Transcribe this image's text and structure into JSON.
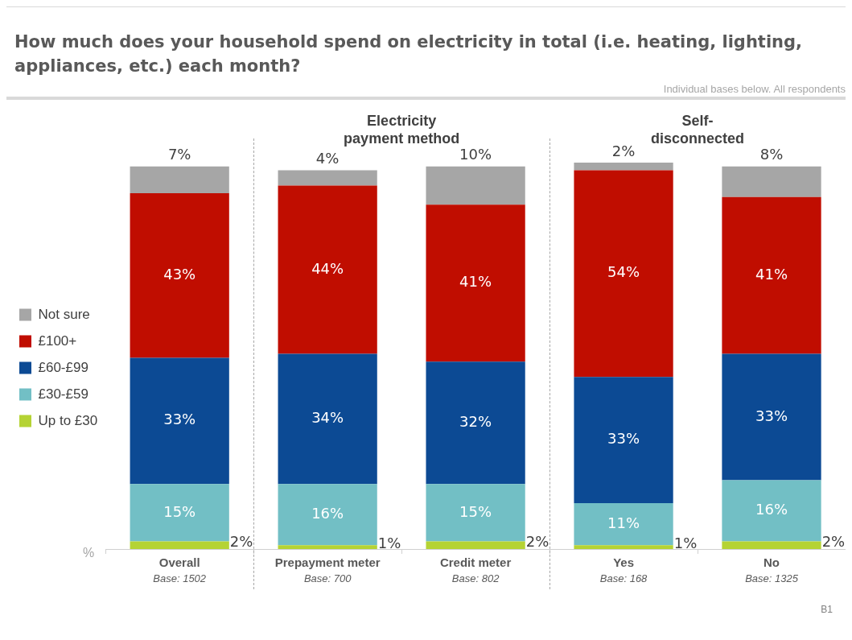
{
  "chart_data": {
    "type": "bar",
    "title": "How much does your household spend on electricity in total (i.e. heating, lighting, appliances, etc.) each month?",
    "subtitle": "Individual bases below. All respondents",
    "ylabel": "%",
    "categories": [
      "Overall",
      "Prepayment meter",
      "Credit meter",
      "Yes",
      "No"
    ],
    "stacked": true,
    "ylim": [
      0,
      101
    ],
    "legend": "left",
    "grid": false,
    "series": [
      {
        "name": "Up to £30",
        "color": "#b5d334",
        "values": [
          2,
          1,
          2,
          1,
          2
        ],
        "value_labels": [
          "2%",
          "1%",
          "2%",
          "1%",
          "2%"
        ]
      },
      {
        "name": "£30-£59",
        "color": "#72bfc5",
        "values": [
          15,
          16,
          15,
          11,
          16
        ],
        "value_labels": [
          "15%",
          "16%",
          "15%",
          "11%",
          "16%"
        ]
      },
      {
        "name": "£60-£99",
        "color": "#0c4a94",
        "values": [
          33,
          34,
          32,
          33,
          33
        ],
        "value_labels": [
          "33%",
          "34%",
          "32%",
          "33%",
          "33%"
        ]
      },
      {
        "name": "£100+",
        "color": "#c00d00",
        "values": [
          43,
          44,
          41,
          54,
          41
        ],
        "value_labels": [
          "43%",
          "44%",
          "41%",
          "54%",
          "41%"
        ]
      },
      {
        "name": "Not sure",
        "color": "#a6a6a6",
        "values": [
          7,
          4,
          10,
          2,
          8
        ],
        "value_labels": [
          "7%",
          "4%",
          "10%",
          "2%",
          "8%"
        ]
      }
    ],
    "annotations": [
      "Electricity payment method",
      "Self-disconnected",
      "Base: 1502",
      "Base: 700",
      "Base: 802",
      "Base: 168",
      "Base: 1325",
      "B1"
    ]
  }
}
